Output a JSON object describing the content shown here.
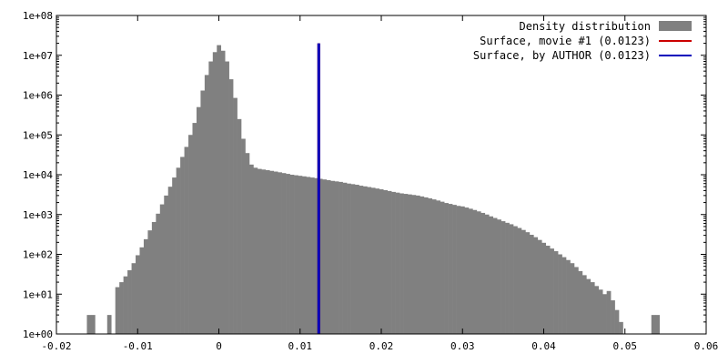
{
  "chart_data": {
    "type": "bar",
    "title": "",
    "xlabel": "",
    "ylabel": "",
    "xlim": [
      -0.02,
      0.06
    ],
    "ylim": [
      1,
      100000000
    ],
    "y_scale": "log",
    "x_ticks": [
      {
        "value": -0.02,
        "label": "-0.02"
      },
      {
        "value": -0.01,
        "label": "-0.01"
      },
      {
        "value": 0,
        "label": "0"
      },
      {
        "value": 0.01,
        "label": "0.01"
      },
      {
        "value": 0.02,
        "label": "0.02"
      },
      {
        "value": 0.03,
        "label": "0.03"
      },
      {
        "value": 0.04,
        "label": "0.04"
      },
      {
        "value": 0.05,
        "label": "0.05"
      },
      {
        "value": 0.06,
        "label": "0.06"
      }
    ],
    "y_ticks": [
      {
        "value": 1,
        "label": "1e+00"
      },
      {
        "value": 10,
        "label": "1e+01"
      },
      {
        "value": 100,
        "label": "1e+02"
      },
      {
        "value": 1000,
        "label": "1e+03"
      },
      {
        "value": 10000,
        "label": "1e+04"
      },
      {
        "value": 100000,
        "label": "1e+05"
      },
      {
        "value": 1000000,
        "label": "1e+06"
      },
      {
        "value": 10000000,
        "label": "1e+07"
      },
      {
        "value": 100000000,
        "label": "1e+08"
      }
    ],
    "legend_position": "top-right",
    "histogram": {
      "name": "Density distribution",
      "color": "#808080",
      "bin_width": 0.0005,
      "bins": [
        [
          -0.016,
          3
        ],
        [
          -0.0155,
          3
        ],
        [
          -0.0135,
          3
        ],
        [
          -0.0125,
          15
        ],
        [
          -0.012,
          20
        ],
        [
          -0.0115,
          28
        ],
        [
          -0.011,
          40
        ],
        [
          -0.0105,
          60
        ],
        [
          -0.01,
          95
        ],
        [
          -0.0095,
          150
        ],
        [
          -0.009,
          240
        ],
        [
          -0.0085,
          400
        ],
        [
          -0.008,
          650
        ],
        [
          -0.0075,
          1050
        ],
        [
          -0.007,
          1800
        ],
        [
          -0.0065,
          3000
        ],
        [
          -0.006,
          5000
        ],
        [
          -0.0055,
          8500
        ],
        [
          -0.005,
          15000
        ],
        [
          -0.0045,
          28000
        ],
        [
          -0.004,
          50000
        ],
        [
          -0.0035,
          100000
        ],
        [
          -0.003,
          200000
        ],
        [
          -0.0025,
          500000
        ],
        [
          -0.002,
          1300000
        ],
        [
          -0.0015,
          3200000
        ],
        [
          -0.001,
          7000000
        ],
        [
          -0.0005,
          12000000
        ],
        [
          0,
          18000000
        ],
        [
          0.0005,
          13000000
        ],
        [
          0.001,
          7000000
        ],
        [
          0.0015,
          2500000
        ],
        [
          0.002,
          850000
        ],
        [
          0.0025,
          250000
        ],
        [
          0.003,
          80000
        ],
        [
          0.0035,
          35000
        ],
        [
          0.004,
          18000
        ],
        [
          0.0045,
          15000
        ],
        [
          0.005,
          14000
        ],
        [
          0.0055,
          13500
        ],
        [
          0.006,
          13000
        ],
        [
          0.0065,
          12500
        ],
        [
          0.007,
          12000
        ],
        [
          0.0075,
          11500
        ],
        [
          0.008,
          11000
        ],
        [
          0.0085,
          10500
        ],
        [
          0.009,
          10000
        ],
        [
          0.0095,
          9700
        ],
        [
          0.01,
          9400
        ],
        [
          0.0105,
          9100
        ],
        [
          0.011,
          8800
        ],
        [
          0.0115,
          8500
        ],
        [
          0.012,
          8200
        ],
        [
          0.0125,
          7900
        ],
        [
          0.013,
          7600
        ],
        [
          0.0135,
          7300
        ],
        [
          0.014,
          7000
        ],
        [
          0.0145,
          6800
        ],
        [
          0.015,
          6600
        ],
        [
          0.0155,
          6300
        ],
        [
          0.016,
          6000
        ],
        [
          0.0165,
          5800
        ],
        [
          0.017,
          5600
        ],
        [
          0.0175,
          5300
        ],
        [
          0.018,
          5100
        ],
        [
          0.0185,
          4900
        ],
        [
          0.019,
          4700
        ],
        [
          0.0195,
          4500
        ],
        [
          0.02,
          4300
        ],
        [
          0.0205,
          4100
        ],
        [
          0.021,
          3900
        ],
        [
          0.0215,
          3700
        ],
        [
          0.022,
          3550
        ],
        [
          0.0225,
          3400
        ],
        [
          0.023,
          3300
        ],
        [
          0.0235,
          3200
        ],
        [
          0.024,
          3100
        ],
        [
          0.0245,
          3000
        ],
        [
          0.025,
          2850
        ],
        [
          0.0255,
          2700
        ],
        [
          0.026,
          2550
        ],
        [
          0.0265,
          2400
        ],
        [
          0.027,
          2250
        ],
        [
          0.0275,
          2100
        ],
        [
          0.028,
          1950
        ],
        [
          0.0285,
          1850
        ],
        [
          0.029,
          1750
        ],
        [
          0.0295,
          1650
        ],
        [
          0.03,
          1600
        ],
        [
          0.0305,
          1500
        ],
        [
          0.031,
          1400
        ],
        [
          0.0315,
          1300
        ],
        [
          0.032,
          1200
        ],
        [
          0.0325,
          1100
        ],
        [
          0.033,
          1000
        ],
        [
          0.0335,
          900
        ],
        [
          0.034,
          820
        ],
        [
          0.0345,
          750
        ],
        [
          0.035,
          680
        ],
        [
          0.0355,
          620
        ],
        [
          0.036,
          570
        ],
        [
          0.0365,
          510
        ],
        [
          0.037,
          460
        ],
        [
          0.0375,
          410
        ],
        [
          0.038,
          360
        ],
        [
          0.0385,
          310
        ],
        [
          0.039,
          270
        ],
        [
          0.0395,
          230
        ],
        [
          0.04,
          195
        ],
        [
          0.0405,
          165
        ],
        [
          0.041,
          140
        ],
        [
          0.0415,
          120
        ],
        [
          0.042,
          100
        ],
        [
          0.0425,
          85
        ],
        [
          0.043,
          72
        ],
        [
          0.0435,
          60
        ],
        [
          0.044,
          48
        ],
        [
          0.0445,
          38
        ],
        [
          0.045,
          30
        ],
        [
          0.0455,
          24
        ],
        [
          0.046,
          20
        ],
        [
          0.0465,
          16
        ],
        [
          0.047,
          13
        ],
        [
          0.0475,
          10
        ],
        [
          0.048,
          12
        ],
        [
          0.0485,
          7
        ],
        [
          0.049,
          4
        ],
        [
          0.0495,
          2
        ],
        [
          0.0535,
          3
        ],
        [
          0.054,
          3
        ]
      ]
    },
    "lines": [
      {
        "name": "Surface, movie #1 (0.0123)",
        "color": "#cc0000",
        "x": 0.0123,
        "y_top": 20000000
      },
      {
        "name": "Surface, by AUTHOR (0.0123)",
        "color": "#0000bb",
        "x": 0.0123,
        "y_top": 20000000
      }
    ]
  }
}
